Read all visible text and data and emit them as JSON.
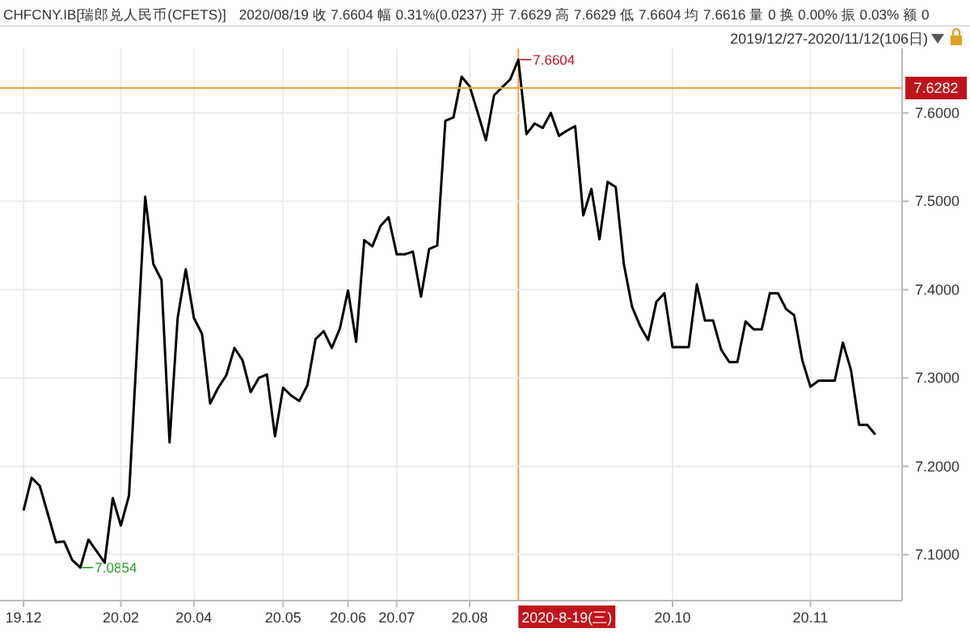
{
  "chart_data": {
    "type": "line",
    "title": "CHFCNY.IB[瑞郎兑人民币(CFETS)]",
    "subtitle": "2020/08/19  收 7.6604  幅 0.31%(0.0237)  开 7.6629  高 7.6629  低 7.6604  均 7.6616  量 0  换 0.00%  振 0.03%  额 0",
    "annotations": [
      "2019/12/27-2020/11/12(106日)",
      "7.0854",
      "7.6604",
      "2020-8-19(三)"
    ],
    "categories": [
      "19.12",
      null,
      null,
      null,
      null,
      null,
      null,
      null,
      null,
      null,
      null,
      null,
      "20.02",
      null,
      null,
      null,
      null,
      null,
      null,
      null,
      null,
      "20.04",
      null,
      null,
      null,
      null,
      null,
      null,
      null,
      null,
      null,
      null,
      "20.05",
      null,
      null,
      null,
      null,
      null,
      null,
      null,
      "20.06",
      null,
      null,
      null,
      null,
      null,
      "20.07",
      null,
      null,
      null,
      null,
      null,
      null,
      null,
      null,
      "20.08",
      null,
      null,
      null,
      null,
      null,
      null,
      null,
      null,
      null,
      null,
      null,
      null,
      null,
      null,
      null,
      null,
      null,
      null,
      null,
      null,
      null,
      null,
      null,
      null,
      "20.10",
      null,
      null,
      null,
      null,
      null,
      null,
      null,
      null,
      null,
      null,
      null,
      null,
      null,
      null,
      null,
      null,
      "20.11",
      null,
      null,
      null,
      null,
      null,
      null,
      null,
      null
    ],
    "series": [
      {
        "color": "#000000",
        "values": [
          7.15,
          7.187,
          7.178,
          7.146,
          7.114,
          7.115,
          7.094,
          7.0854,
          7.117,
          7.104,
          7.091,
          7.164,
          7.133,
          7.167,
          7.336,
          7.505,
          7.429,
          7.411,
          7.227,
          7.368,
          7.423,
          7.368,
          7.35,
          7.271,
          7.289,
          7.303,
          7.334,
          7.32,
          7.284,
          7.3,
          7.304,
          7.234,
          7.289,
          7.28,
          7.274,
          7.292,
          7.344,
          7.353,
          7.334,
          7.356,
          7.399,
          7.341,
          7.456,
          7.449,
          7.472,
          7.482,
          7.44,
          7.44,
          7.443,
          7.392,
          7.446,
          7.45,
          7.591,
          7.595,
          7.641,
          7.63,
          7.6,
          7.569,
          7.62,
          7.629,
          7.638,
          7.6604,
          7.576,
          7.588,
          7.583,
          7.6,
          7.574,
          7.58,
          7.585,
          7.484,
          7.514,
          7.457,
          7.522,
          7.516,
          7.429,
          7.381,
          7.359,
          7.343,
          7.386,
          7.396,
          7.335,
          7.335,
          7.335,
          7.406,
          7.365,
          7.365,
          7.332,
          7.318,
          7.318,
          7.364,
          7.355,
          7.355,
          7.396,
          7.396,
          7.378,
          7.371,
          7.32,
          7.29,
          7.297,
          7.297,
          7.297,
          7.34,
          7.309,
          7.247,
          7.247,
          7.236
        ]
      }
    ],
    "ylim": [
      7.048,
      7.673
    ],
    "yticks": [
      {
        "value": 7.1,
        "label": "7.1000"
      },
      {
        "value": 7.2,
        "label": "7.2000"
      },
      {
        "value": 7.3,
        "label": "7.3000"
      },
      {
        "value": 7.4,
        "label": "7.4000"
      },
      {
        "value": 7.5,
        "label": "7.5000"
      },
      {
        "value": 7.6,
        "label": "7.6000"
      }
    ],
    "ref_lines": [
      {
        "axis": "y",
        "value": 7.6282,
        "label": "7.6282",
        "color": "#f0a040"
      }
    ],
    "grid": true,
    "marker": "none",
    "line_style": "solid"
  }
}
